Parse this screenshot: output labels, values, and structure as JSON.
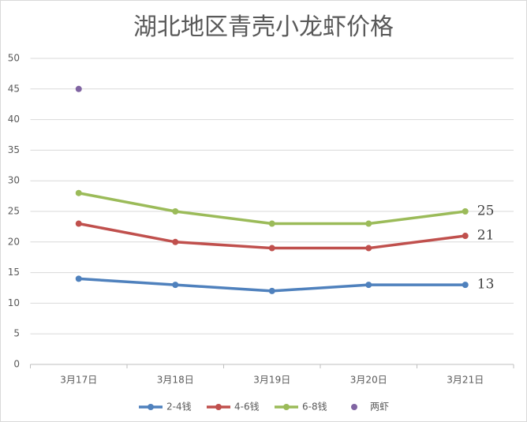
{
  "chart_data": {
    "type": "line",
    "title": "湖北地区青壳小龙虾价格",
    "categories": [
      "3月17日",
      "3月18日",
      "3月19日",
      "3月20日",
      "3月21日"
    ],
    "series": [
      {
        "name": "2-4钱",
        "color": "#4f81bd",
        "values": [
          14,
          13,
          12,
          13,
          13
        ]
      },
      {
        "name": "4-6钱",
        "color": "#c0504d",
        "values": [
          23,
          20,
          19,
          19,
          21
        ]
      },
      {
        "name": "6-8钱",
        "color": "#9bbb59",
        "values": [
          28,
          25,
          23,
          23,
          25
        ]
      },
      {
        "name": "两虾",
        "color": "#8064a2",
        "values": [
          45,
          null,
          null,
          null,
          null
        ]
      }
    ],
    "ylim": [
      0,
      50
    ],
    "yticks": [
      0,
      5,
      10,
      15,
      20,
      25,
      30,
      35,
      40,
      45,
      50
    ],
    "grid": true,
    "data_labels": "last",
    "legend": "bottom"
  }
}
